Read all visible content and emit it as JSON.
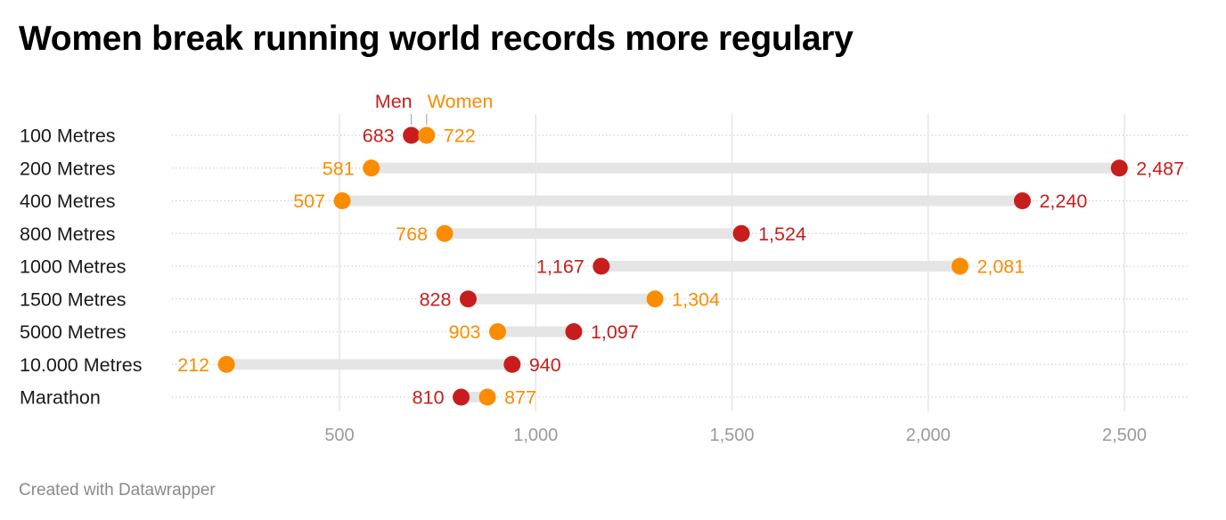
{
  "title": "Women break running world records more regulary",
  "footer": "Created with Datawrapper",
  "colors": {
    "men": "#c71e1d",
    "women": "#fa8c00",
    "range_bar": "#e5e5e5",
    "grid": "#e0e0e0",
    "tick_label": "#9a9a9a",
    "category_label": "#1a1a1a"
  },
  "chart_data": {
    "type": "range-dot",
    "xlim": [
      0,
      2650
    ],
    "x_ticks": [
      500,
      1000,
      1500,
      2000,
      2500
    ],
    "x_tick_labels": [
      "500",
      "1,000",
      "1,500",
      "2,000",
      "2,500"
    ],
    "legend": [
      {
        "name": "Men",
        "color": "#c71e1d"
      },
      {
        "name": "Women",
        "color": "#fa8c00"
      }
    ],
    "categories": [
      "100 Metres",
      "200 Metres",
      "400 Metres",
      "800 Metres",
      "1000 Metres",
      "1500 Metres",
      "5000 Metres",
      "10.000 Metres",
      "Marathon"
    ],
    "series": [
      {
        "name": "Men",
        "values": [
          683,
          2487,
          2240,
          1524,
          1167,
          828,
          1097,
          940,
          810
        ],
        "labels": [
          "683",
          "2,487",
          "2,240",
          "1,524",
          "1,167",
          "828",
          "1,097",
          "940",
          "810"
        ]
      },
      {
        "name": "Women",
        "values": [
          722,
          581,
          507,
          768,
          2081,
          1304,
          903,
          212,
          877
        ],
        "labels": [
          "722",
          "581",
          "507",
          "768",
          "2,081",
          "1,304",
          "903",
          "212",
          "877"
        ]
      }
    ]
  }
}
